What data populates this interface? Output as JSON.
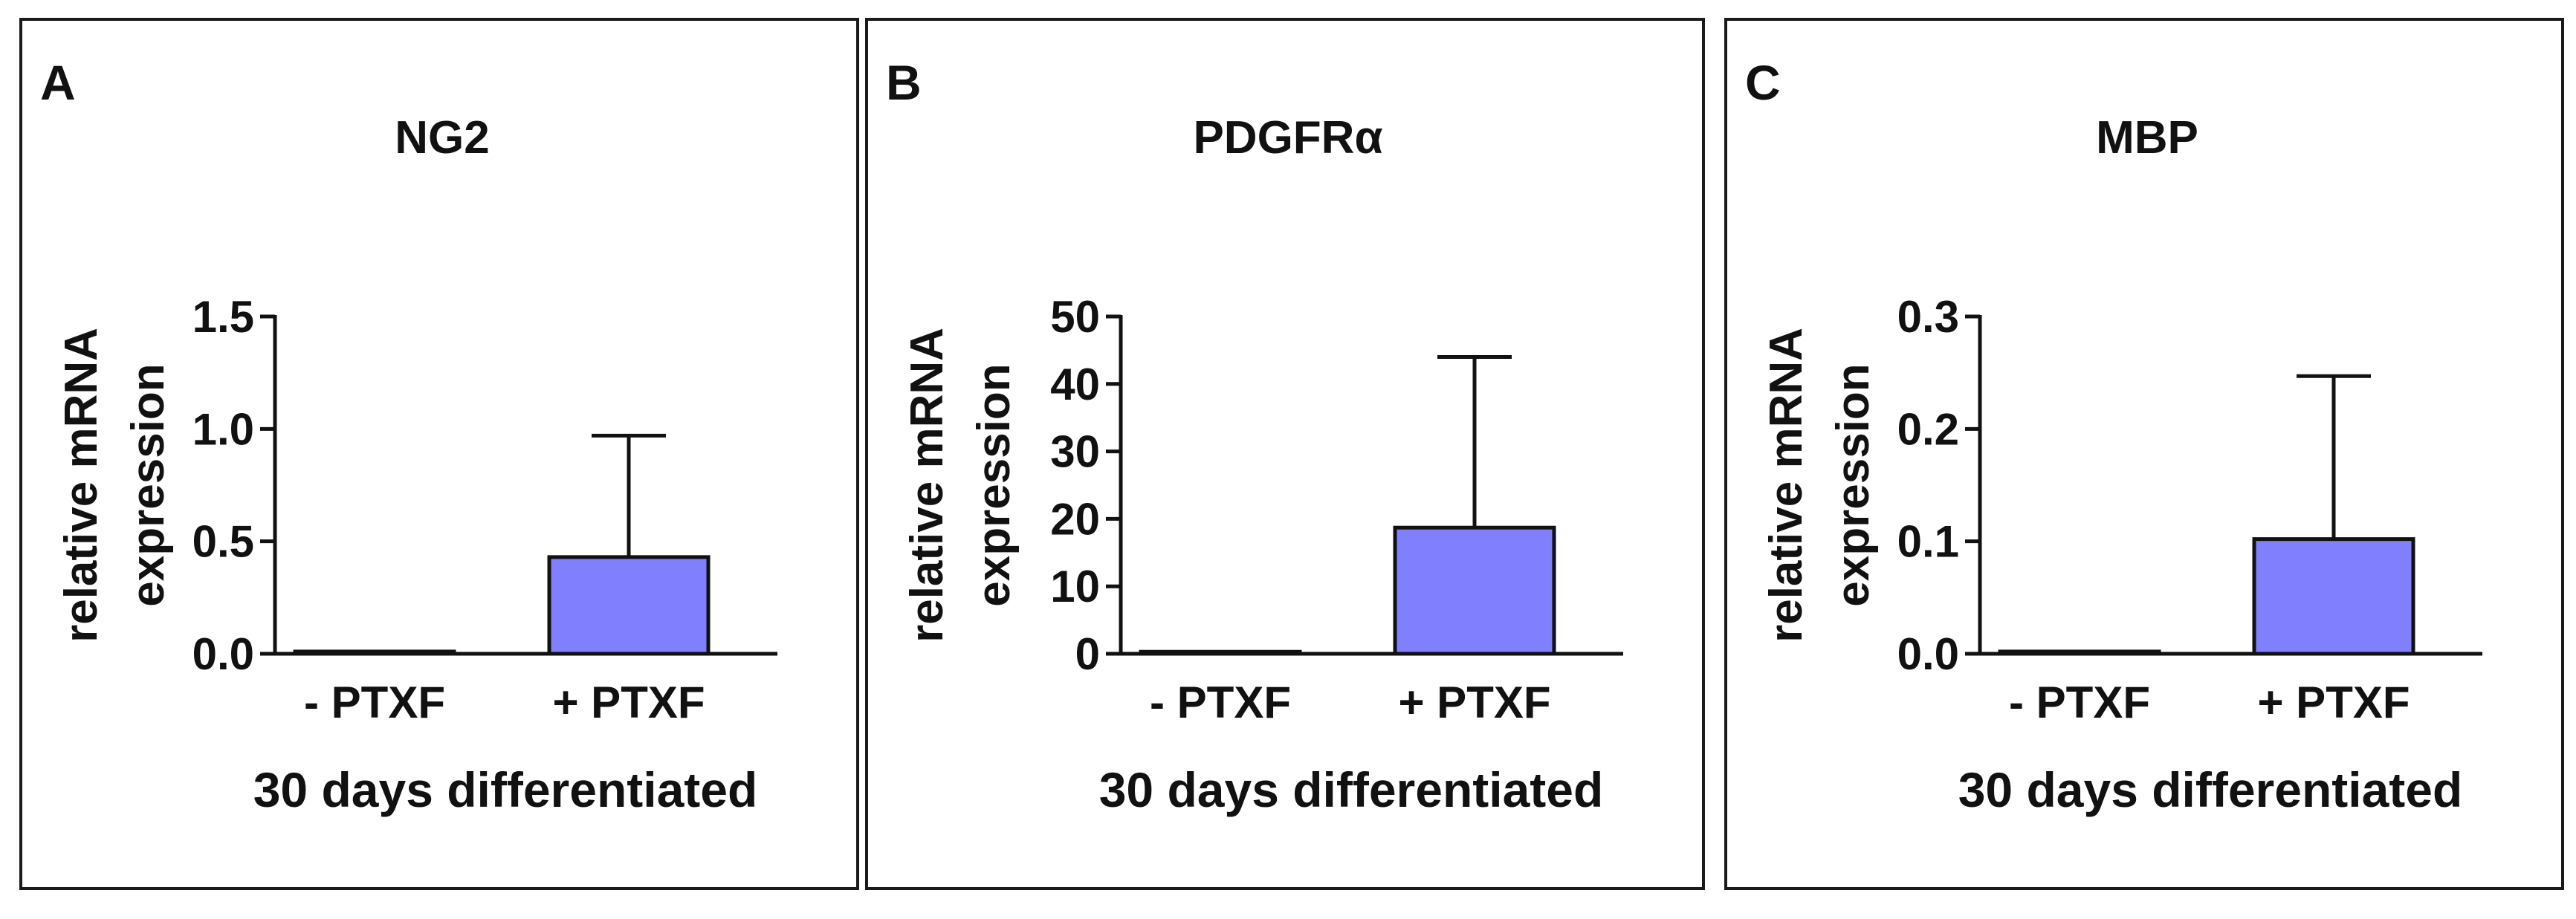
{
  "chart_data": [
    {
      "type": "bar",
      "panel_letter": "A",
      "title": "NG2",
      "ylabel_lines": [
        "relative mRNA",
        "expression"
      ],
      "xlabel": "30 days differentiated",
      "categories": [
        "- PTXF",
        "+ PTXF"
      ],
      "values": [
        0.01,
        0.43
      ],
      "error_upper": [
        0.01,
        0.97
      ],
      "ylim": [
        0,
        1.5
      ],
      "yticks": [
        0.0,
        0.5,
        1.0,
        1.5
      ],
      "ytick_labels": [
        "0.0",
        "0.5",
        "1.0",
        "1.5"
      ],
      "bar_color": "#8080ff"
    },
    {
      "type": "bar",
      "panel_letter": "B",
      "title": "PDGFRα",
      "ylabel_lines": [
        "relative mRNA",
        "expression"
      ],
      "xlabel": "30 days differentiated",
      "categories": [
        "- PTXF",
        "+ PTXF"
      ],
      "values": [
        0.3,
        18.7
      ],
      "error_upper": [
        0.3,
        44
      ],
      "ylim": [
        0,
        50
      ],
      "yticks": [
        0,
        10,
        20,
        30,
        40,
        50
      ],
      "ytick_labels": [
        "0",
        "10",
        "20",
        "30",
        "40",
        "50"
      ],
      "bar_color": "#8080ff"
    },
    {
      "type": "bar",
      "panel_letter": "C",
      "title": "MBP",
      "ylabel_lines": [
        "relative mRNA",
        "expression"
      ],
      "xlabel": "30 days differentiated",
      "categories": [
        "- PTXF",
        "+ PTXF"
      ],
      "values": [
        0.002,
        0.102
      ],
      "error_upper": [
        0.002,
        0.247
      ],
      "ylim": [
        0,
        0.3
      ],
      "yticks": [
        0.0,
        0.1,
        0.2,
        0.3
      ],
      "ytick_labels": [
        "0.0",
        "0.1",
        "0.2",
        "0.3"
      ],
      "bar_color": "#8080ff"
    }
  ]
}
